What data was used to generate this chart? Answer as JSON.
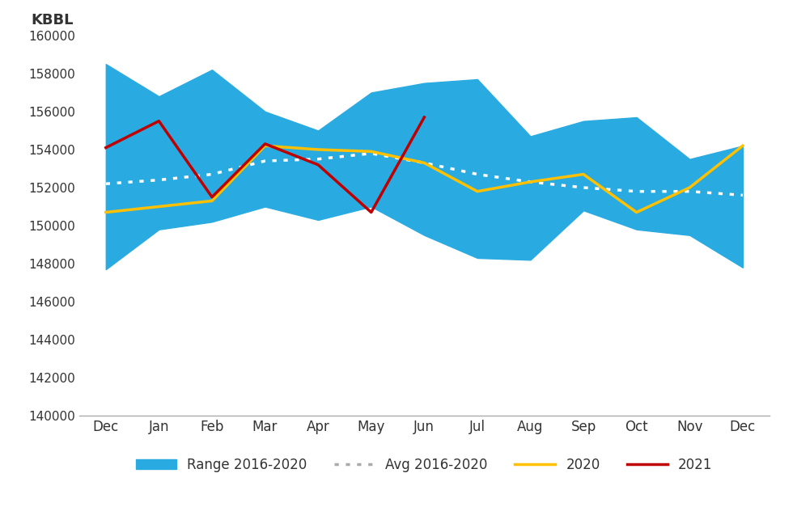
{
  "ylabel": "KBBL",
  "months": [
    "Dec",
    "Jan",
    "Feb",
    "Mar",
    "Apr",
    "May",
    "Jun",
    "Jul",
    "Aug",
    "Sep",
    "Oct",
    "Nov",
    "Dec"
  ],
  "range_high": [
    158500,
    156800,
    158200,
    156000,
    155000,
    157000,
    157500,
    157700,
    154700,
    155500,
    155700,
    153500,
    154200
  ],
  "range_low": [
    147700,
    149800,
    150200,
    151000,
    150300,
    151000,
    149500,
    148300,
    148200,
    150800,
    149800,
    149500,
    147800
  ],
  "avg_2016_2020": [
    152200,
    152400,
    152700,
    153400,
    153500,
    153800,
    153300,
    152700,
    152300,
    152000,
    151800,
    151800,
    151600
  ],
  "line_2020": [
    150700,
    151000,
    151300,
    154200,
    154000,
    153900,
    153300,
    151800,
    152300,
    152700,
    150700,
    152000,
    154200
  ],
  "line_2021": [
    154100,
    155500,
    151500,
    154300,
    153200,
    150700,
    155700,
    null,
    null,
    null,
    null,
    null,
    null
  ],
  "ylim": [
    140000,
    160000
  ],
  "yticks": [
    140000,
    142000,
    144000,
    146000,
    148000,
    150000,
    152000,
    154000,
    156000,
    158000,
    160000
  ],
  "range_color": "#29ABE2",
  "avg_color": "#FFFFFF",
  "color_2020": "#FFC000",
  "color_2021": "#C00000",
  "bg_color": "#FFFFFF",
  "legend_labels": [
    "Range 2016-2020",
    "Avg 2016-2020",
    "2020",
    "2021"
  ]
}
